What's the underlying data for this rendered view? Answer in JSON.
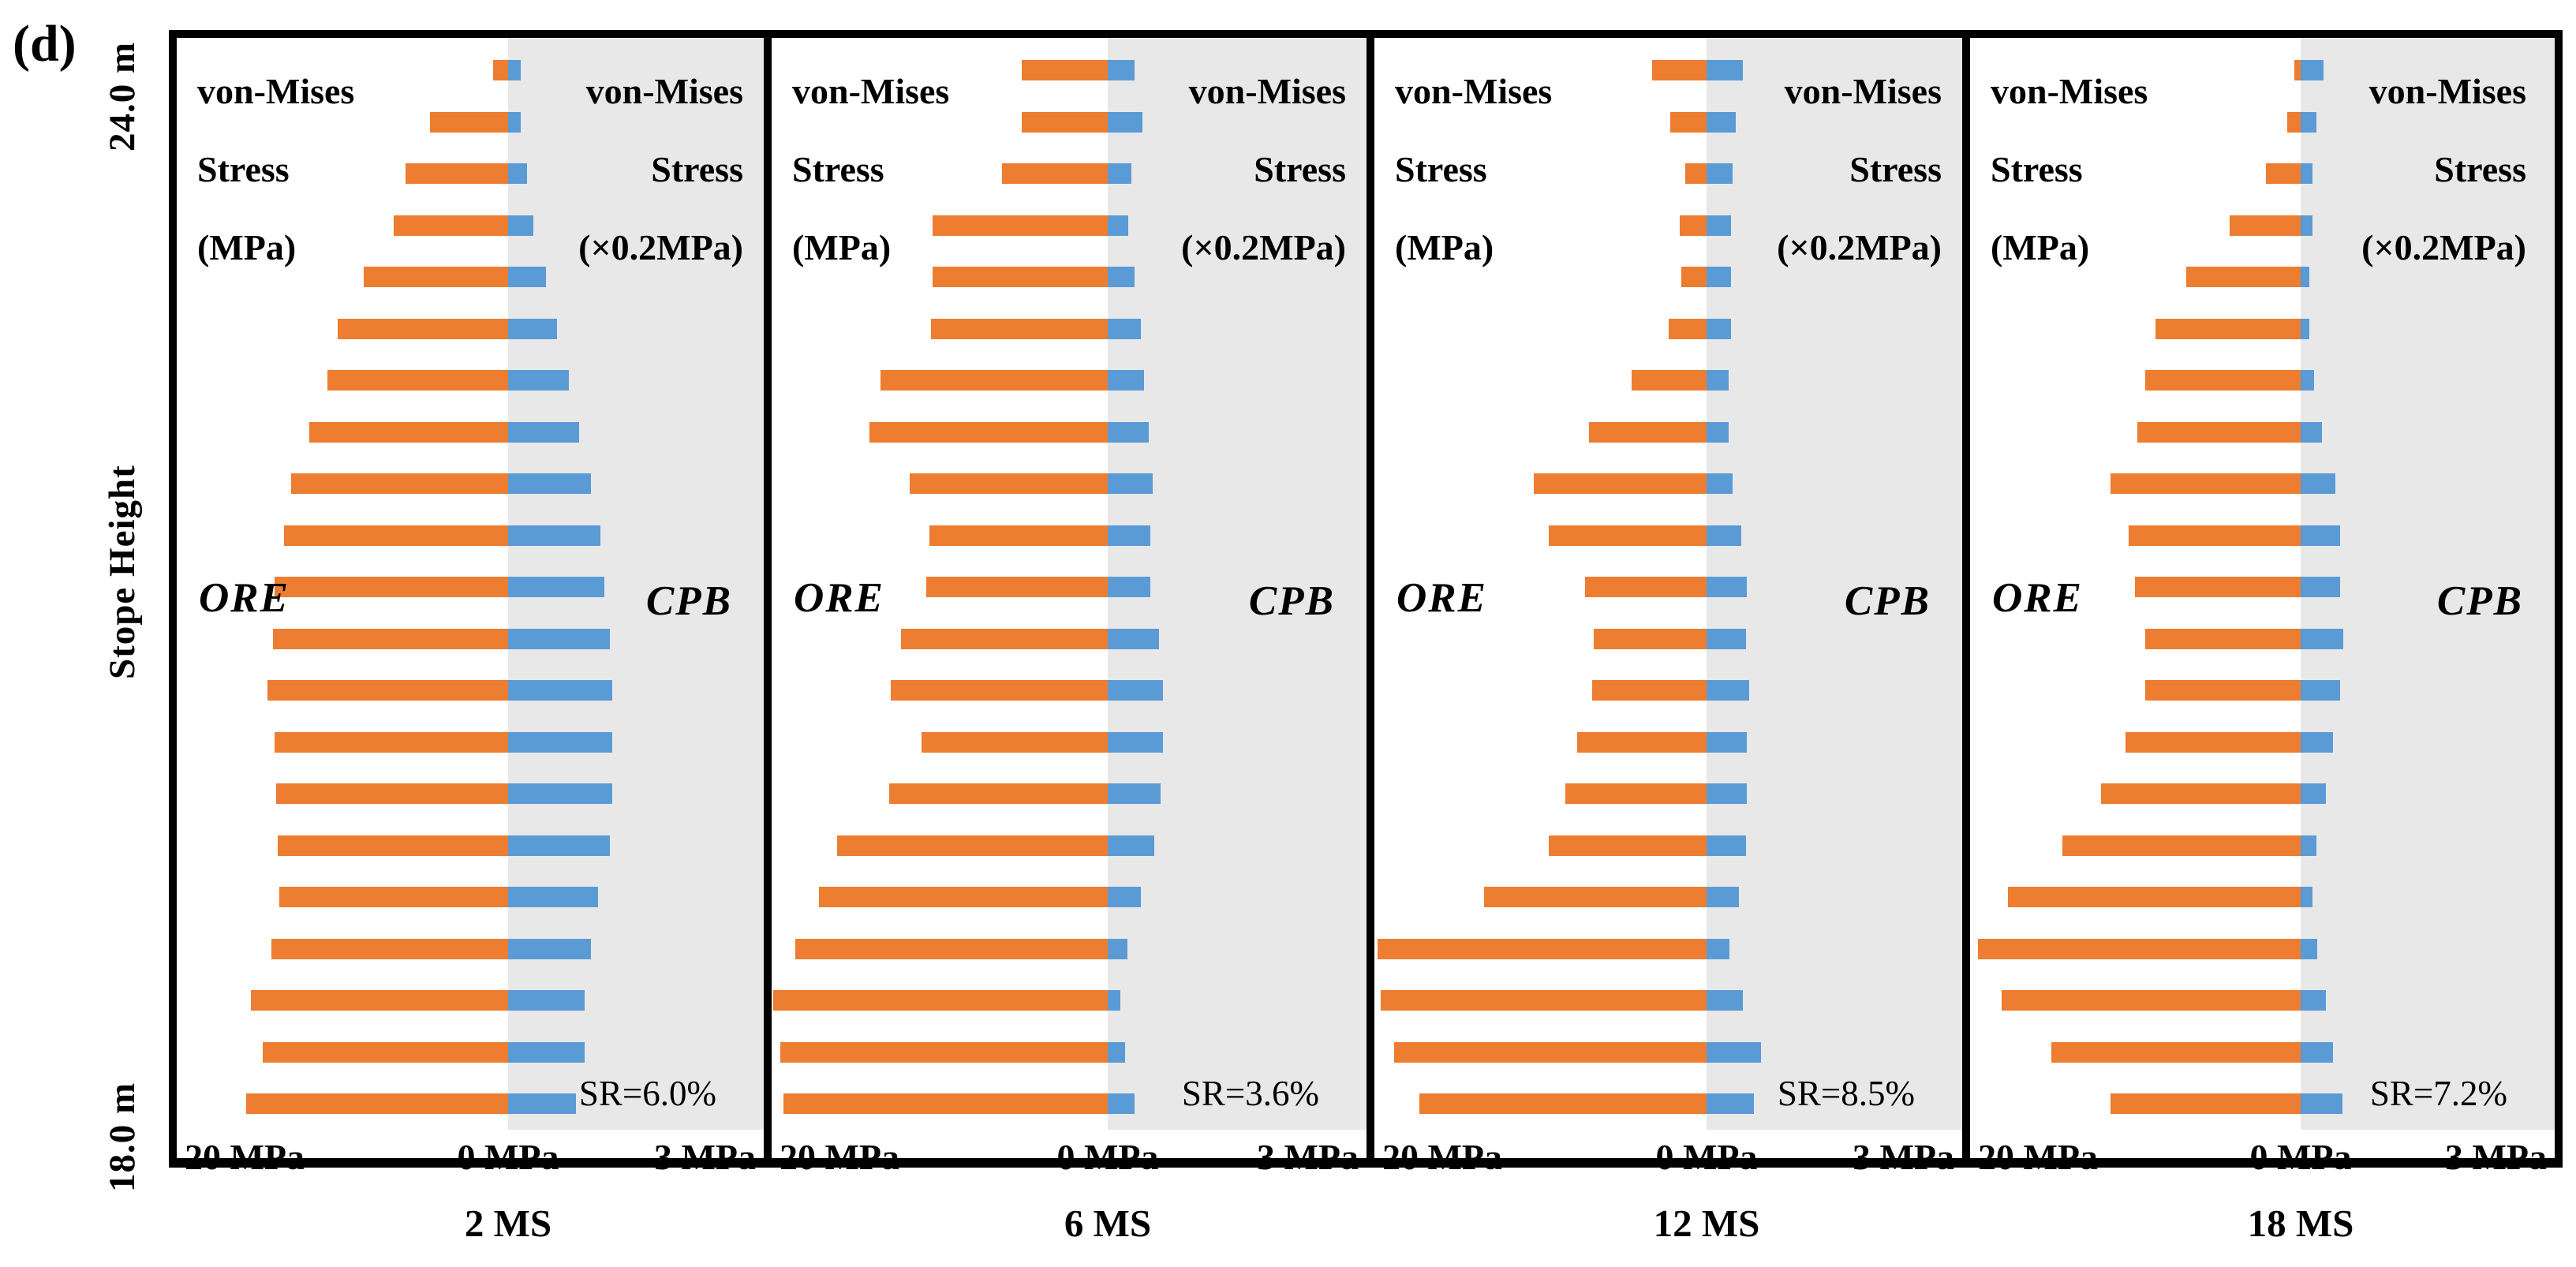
{
  "figure": {
    "label": "(d)"
  },
  "y_axis": {
    "title": "Stope Height",
    "top_label": "24.0 m",
    "bottom_label": "18.0 m"
  },
  "x_axis": {
    "left": "20 MPa",
    "center": "0 MPa",
    "right": "3 MPa"
  },
  "legend_left": {
    "line1": "von-Mises",
    "line2": "Stress",
    "line3": "(MPa)"
  },
  "legend_right": {
    "line1": "von-Mises",
    "line2": "Stress",
    "line3": "(×0.2MPa)"
  },
  "side_labels": {
    "left": "ORE",
    "right": "CPB"
  },
  "colors": {
    "ore_bar": "#ED7D31",
    "cpb_bar": "#5B9BD5",
    "cpb_zone_bg": "#E8E8E8",
    "frame": "#000000"
  },
  "chart_data": {
    "type": "bar",
    "orientation": "horizontal-diverging",
    "n_rows": 21,
    "y_axis_title": "Stope Height",
    "y_range_m": [
      18.0,
      24.0
    ],
    "left_series_name": "von-Mises Stress (MPa) - ORE",
    "right_series_name": "von-Mises Stress (×0.2MPa) - CPB",
    "x_left_range_mpa": [
      0,
      20
    ],
    "x_right_range_mpa": [
      0,
      3
    ],
    "panels": [
      {
        "caption": "2  MS",
        "sr_label": "SR=6.0%",
        "ore_mpa": [
          0.9,
          4.7,
          6.2,
          6.9,
          8.7,
          10.3,
          10.9,
          12.0,
          13.1,
          13.5,
          14.1,
          14.2,
          14.5,
          14.1,
          14.0,
          13.9,
          13.8,
          14.3,
          15.5,
          14.8,
          15.8
        ],
        "cpb_mpa": [
          0.15,
          0.15,
          0.22,
          0.3,
          0.44,
          0.57,
          0.71,
          0.83,
          0.97,
          1.08,
          1.13,
          1.19,
          1.22,
          1.22,
          1.22,
          1.19,
          1.06,
          0.97,
          0.9,
          0.9,
          0.8
        ]
      },
      {
        "caption": "6  MS",
        "sr_label": "SR=3.6%",
        "ore_mpa": [
          5.1,
          5.1,
          6.3,
          10.4,
          10.4,
          10.5,
          13.5,
          14.2,
          11.8,
          10.6,
          10.8,
          12.3,
          12.9,
          11.1,
          13.0,
          16.1,
          17.2,
          18.6,
          19.9,
          19.5,
          19.3
        ],
        "cpb_mpa": [
          0.31,
          0.4,
          0.27,
          0.24,
          0.31,
          0.38,
          0.42,
          0.48,
          0.52,
          0.49,
          0.49,
          0.59,
          0.64,
          0.64,
          0.61,
          0.54,
          0.38,
          0.23,
          0.15,
          0.2,
          0.31
        ]
      },
      {
        "caption": "12  MS",
        "sr_label": "SR=8.5%",
        "ore_mpa": [
          3.3,
          2.2,
          1.3,
          1.6,
          1.5,
          2.3,
          4.5,
          7.1,
          10.4,
          9.5,
          7.3,
          6.8,
          6.9,
          7.8,
          8.5,
          9.5,
          13.4,
          19.8,
          19.6,
          18.8,
          17.3
        ],
        "cpb_mpa": [
          0.43,
          0.34,
          0.31,
          0.29,
          0.29,
          0.29,
          0.26,
          0.26,
          0.31,
          0.41,
          0.47,
          0.46,
          0.5,
          0.47,
          0.47,
          0.46,
          0.38,
          0.27,
          0.43,
          0.64,
          0.56
        ]
      },
      {
        "caption": "18  MS",
        "sr_label": "SR=7.2%",
        "ore_mpa": [
          0.4,
          0.8,
          2.1,
          4.3,
          6.9,
          8.8,
          9.4,
          9.9,
          11.5,
          10.4,
          10.0,
          9.4,
          9.4,
          10.6,
          12.1,
          14.4,
          17.7,
          19.5,
          18.1,
          15.1,
          11.5
        ],
        "cpb_mpa": [
          0.27,
          0.19,
          0.14,
          0.14,
          0.1,
          0.1,
          0.16,
          0.25,
          0.41,
          0.47,
          0.47,
          0.5,
          0.47,
          0.38,
          0.3,
          0.19,
          0.14,
          0.2,
          0.3,
          0.38,
          0.49
        ]
      }
    ]
  }
}
